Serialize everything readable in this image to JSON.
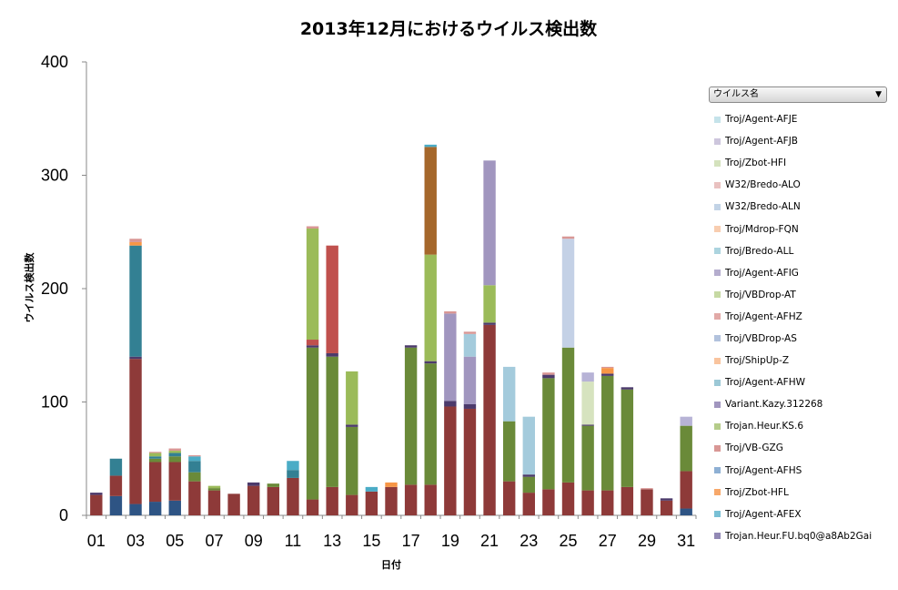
{
  "chart_data": {
    "type": "bar",
    "stacked": true,
    "title": "2013年12月におけるウイルス検出数",
    "xlabel": "日付",
    "ylabel": "ウイルス検出数",
    "ylim": [
      0,
      400
    ],
    "yticks": [
      0,
      100,
      200,
      300,
      400
    ],
    "xtick_labels": [
      "01",
      "03",
      "05",
      "07",
      "09",
      "11",
      "13",
      "15",
      "17",
      "19",
      "21",
      "23",
      "25",
      "27",
      "29",
      "31"
    ],
    "grid": false,
    "legend_position": "right",
    "categories": [
      "01",
      "02",
      "03",
      "04",
      "05",
      "06",
      "07",
      "08",
      "09",
      "10",
      "11",
      "12",
      "13",
      "14",
      "15",
      "16",
      "17",
      "18",
      "19",
      "20",
      "21",
      "22",
      "23",
      "24",
      "25",
      "26",
      "27",
      "28",
      "29",
      "30",
      "31"
    ],
    "series": [
      {
        "name": "",
        "color": "#2e5484",
        "values": [
          0,
          17,
          10,
          12,
          13,
          0,
          0,
          0,
          0,
          0,
          0,
          0,
          0,
          0,
          0,
          0,
          0,
          0,
          0,
          0,
          0,
          0,
          0,
          0,
          0,
          0,
          0,
          0,
          0,
          0,
          6
        ]
      },
      {
        "name": "",
        "color": "#8e3a39",
        "values": [
          18,
          18,
          128,
          35,
          34,
          30,
          22,
          19,
          26,
          25,
          33,
          14,
          25,
          18,
          21,
          25,
          27,
          27,
          96,
          94,
          168,
          30,
          20,
          23,
          29,
          22,
          22,
          25,
          23,
          13,
          33
        ]
      },
      {
        "name": "",
        "color": "#6a8a39",
        "values": [
          0,
          0,
          0,
          3,
          5,
          8,
          2,
          0,
          0,
          3,
          0,
          134,
          115,
          60,
          0,
          0,
          121,
          107,
          0,
          0,
          0,
          53,
          14,
          98,
          119,
          57,
          101,
          86,
          0,
          0,
          40
        ]
      },
      {
        "name": "",
        "color": "#4c3a6b",
        "values": [
          2,
          0,
          2,
          0,
          0,
          0,
          0,
          0,
          3,
          0,
          0,
          2,
          3,
          2,
          0,
          0,
          2,
          2,
          5,
          4,
          2,
          0,
          2,
          3,
          0,
          1,
          2,
          2,
          0,
          2,
          0
        ]
      },
      {
        "name": "",
        "color": "#338093",
        "values": [
          0,
          15,
          98,
          2,
          3,
          10,
          0,
          0,
          0,
          0,
          7,
          0,
          0,
          0,
          0,
          0,
          0,
          0,
          0,
          0,
          0,
          0,
          0,
          0,
          0,
          0,
          0,
          0,
          0,
          0,
          0
        ]
      },
      {
        "name": "",
        "color": "#c0504d",
        "values": [
          0,
          0,
          0,
          0,
          0,
          0,
          0,
          0,
          0,
          0,
          0,
          5,
          95,
          0,
          0,
          0,
          0,
          0,
          0,
          0,
          0,
          0,
          0,
          0,
          0,
          0,
          0,
          0,
          0,
          0,
          0
        ]
      },
      {
        "name": "",
        "color": "#9bbb59",
        "values": [
          0,
          0,
          0,
          3,
          2,
          0,
          2,
          0,
          0,
          0,
          0,
          98,
          0,
          47,
          0,
          0,
          0,
          94,
          0,
          0,
          33,
          0,
          0,
          0,
          0,
          0,
          0,
          0,
          0,
          0,
          0
        ]
      },
      {
        "name": "",
        "color": "#a5672b",
        "values": [
          0,
          0,
          0,
          0,
          0,
          0,
          0,
          0,
          0,
          0,
          0,
          0,
          0,
          0,
          0,
          0,
          0,
          95,
          0,
          0,
          0,
          0,
          0,
          0,
          0,
          0,
          0,
          0,
          0,
          0,
          0
        ]
      },
      {
        "name": "",
        "color": "#a196bf",
        "values": [
          0,
          0,
          0,
          0,
          0,
          0,
          0,
          0,
          0,
          0,
          0,
          0,
          0,
          0,
          0,
          0,
          0,
          0,
          77,
          42,
          110,
          0,
          0,
          0,
          0,
          0,
          0,
          0,
          0,
          0,
          0
        ]
      },
      {
        "name": "",
        "color": "#a4cbdc",
        "values": [
          0,
          0,
          0,
          0,
          0,
          0,
          0,
          0,
          0,
          0,
          0,
          0,
          0,
          0,
          0,
          0,
          0,
          0,
          0,
          20,
          0,
          48,
          51,
          0,
          0,
          0,
          0,
          0,
          0,
          0,
          0
        ]
      },
      {
        "name": "",
        "color": "#c4d1e6",
        "values": [
          0,
          0,
          0,
          0,
          0,
          0,
          0,
          0,
          0,
          0,
          0,
          0,
          0,
          0,
          0,
          0,
          0,
          0,
          0,
          0,
          0,
          0,
          0,
          0,
          96,
          0,
          0,
          0,
          0,
          0,
          0
        ]
      },
      {
        "name": "",
        "color": "#d6e3bf",
        "values": [
          0,
          0,
          0,
          0,
          0,
          0,
          0,
          0,
          0,
          0,
          0,
          0,
          0,
          0,
          0,
          0,
          0,
          0,
          0,
          0,
          0,
          0,
          0,
          0,
          0,
          38,
          0,
          0,
          0,
          0,
          0
        ]
      },
      {
        "name": "",
        "color": "#b7b3d6",
        "values": [
          0,
          0,
          0,
          0,
          0,
          0,
          0,
          0,
          0,
          0,
          0,
          0,
          0,
          0,
          0,
          0,
          0,
          0,
          0,
          0,
          0,
          0,
          0,
          0,
          0,
          8,
          0,
          0,
          0,
          0,
          8
        ]
      },
      {
        "name": "",
        "color": "#4bacc6",
        "values": [
          0,
          0,
          0,
          0,
          0,
          4,
          0,
          0,
          0,
          0,
          8,
          0,
          0,
          0,
          4,
          0,
          0,
          2,
          0,
          0,
          0,
          0,
          0,
          0,
          0,
          0,
          0,
          0,
          0,
          0,
          0
        ]
      },
      {
        "name": "",
        "color": "#f79646",
        "values": [
          0,
          0,
          3,
          0,
          0,
          0,
          0,
          0,
          0,
          0,
          0,
          0,
          0,
          0,
          0,
          4,
          0,
          0,
          0,
          0,
          0,
          0,
          0,
          0,
          0,
          0,
          5,
          0,
          0,
          0,
          0
        ]
      },
      {
        "name": "",
        "color": "#d99795",
        "values": [
          0,
          0,
          3,
          1,
          2,
          1,
          0,
          0,
          0,
          0,
          0,
          2,
          0,
          0,
          0,
          0,
          0,
          0,
          2,
          2,
          0,
          0,
          0,
          2,
          2,
          0,
          1,
          0,
          1,
          0,
          0
        ]
      }
    ]
  },
  "legend": {
    "header_label": "ウイルス名",
    "items": [
      {
        "label": "Troj/Agent-AFJE",
        "color": "#c5e3ea"
      },
      {
        "label": "Troj/Agent-AFJB",
        "color": "#cdc6dd"
      },
      {
        "label": "Troj/Zbot-HFI",
        "color": "#d4e2bd"
      },
      {
        "label": "W32/Bredo-ALO",
        "color": "#e9c1c0"
      },
      {
        "label": "W32/Bredo-ALN",
        "color": "#c2d3e6"
      },
      {
        "label": "Troj/Mdrop-FQN",
        "color": "#f8cdb0"
      },
      {
        "label": "Troj/Bredo-ALL",
        "color": "#acd4df"
      },
      {
        "label": "Troj/Agent-AFIG",
        "color": "#b5adce"
      },
      {
        "label": "Troj/VBDrop-AT",
        "color": "#c6d9a3"
      },
      {
        "label": "Troj/Agent-AFHZ",
        "color": "#e2a9a7"
      },
      {
        "label": "Troj/VBDrop-AS",
        "color": "#b2c2dd"
      },
      {
        "label": "Troj/ShipUp-Z",
        "color": "#f9c49e"
      },
      {
        "label": "Troj/Agent-AFHW",
        "color": "#9cc8d6"
      },
      {
        "label": "Variant.Kazy.312268",
        "color": "#a196bf"
      },
      {
        "label": "Trojan.Heur.KS.6",
        "color": "#b5cc8a"
      },
      {
        "label": "Troj/VB-GZG",
        "color": "#d99795"
      },
      {
        "label": "Troj/Agent-AFHS",
        "color": "#8eb0d4"
      },
      {
        "label": "Troj/Zbot-HFL",
        "color": "#f7a86a"
      },
      {
        "label": "Troj/Agent-AFEX",
        "color": "#79c0d5"
      },
      {
        "label": "Trojan.Heur.FU.bq0@a8Ab2Gai",
        "color": "#9289b5"
      }
    ]
  }
}
